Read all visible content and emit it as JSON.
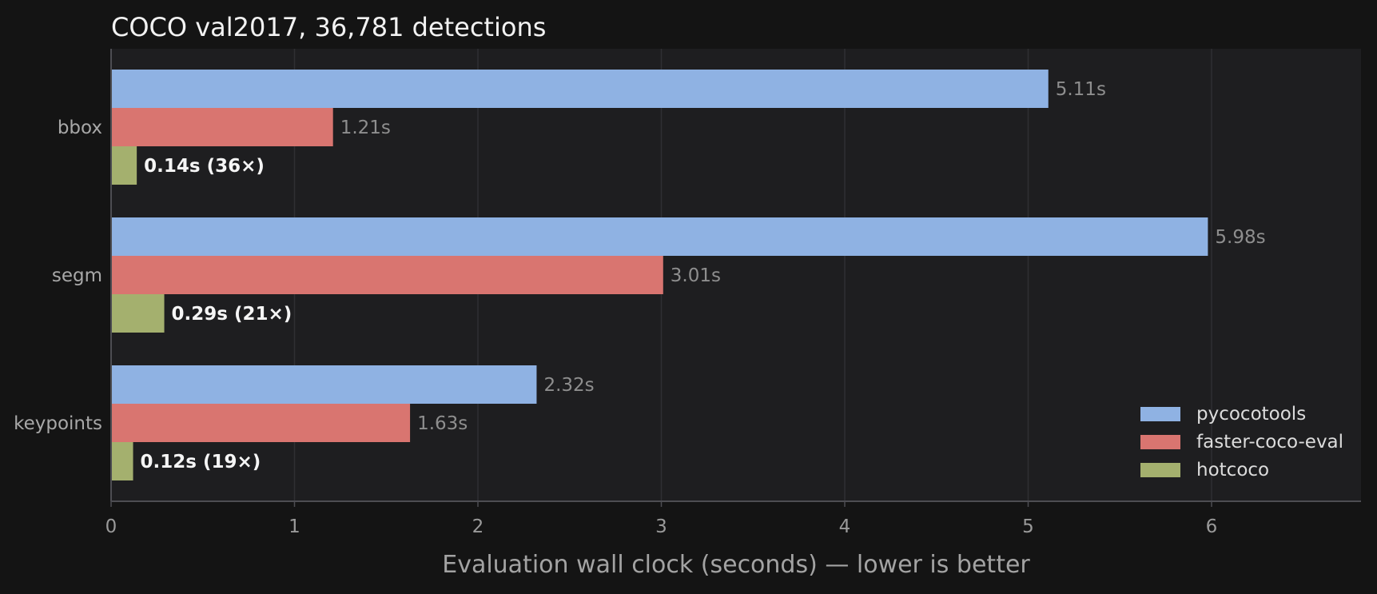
{
  "chart_data": {
    "type": "bar",
    "orientation": "horizontal",
    "title": "COCO val2017, 36,781 detections",
    "xlabel": "Evaluation wall clock (seconds) — lower is better",
    "ylabel": "",
    "categories": [
      "bbox",
      "segm",
      "keypoints"
    ],
    "xlim": [
      0,
      6.8
    ],
    "xticks": [
      0,
      1,
      2,
      3,
      4,
      5,
      6
    ],
    "grid": "vertical",
    "legend_position": "bottom-right",
    "series": [
      {
        "name": "pycocotools",
        "color": "#8fb2e3",
        "values": [
          5.11,
          5.98,
          2.32
        ],
        "labels": [
          "5.11s",
          "5.98s",
          "2.32s"
        ],
        "emphasis": false
      },
      {
        "name": "faster-coco-eval",
        "color": "#d97570",
        "values": [
          1.21,
          3.01,
          1.63
        ],
        "labels": [
          "1.21s",
          "3.01s",
          "1.63s"
        ],
        "emphasis": false
      },
      {
        "name": "hotcoco",
        "color": "#a4b06e",
        "values": [
          0.14,
          0.29,
          0.12
        ],
        "labels": [
          "0.14s  (36×)",
          "0.29s  (21×)",
          "0.12s  (19×)"
        ],
        "emphasis": true
      }
    ]
  },
  "colors": {
    "page_background": "#141414",
    "plot_background": "#1e1e20",
    "grid": "#2f2f33",
    "axis": "#4d4d52"
  }
}
